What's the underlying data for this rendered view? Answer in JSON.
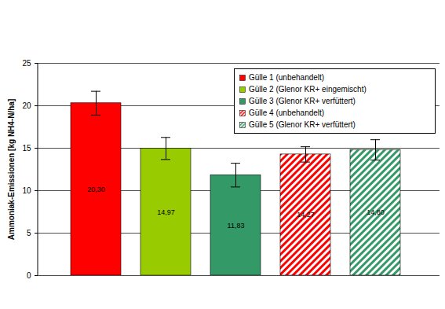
{
  "chart_data": {
    "type": "bar",
    "y_label": "Ammoniak-Emissionen [kg NH4-N/ha]",
    "categories": [
      null
    ],
    "series": [
      {
        "name": "Gülle 1 (unbehandelt)",
        "color": "#ff0000",
        "line_style": "solid",
        "values": [
          20.3
        ],
        "value_labels": [
          "20,30"
        ],
        "errors": [
          1.4
        ]
      },
      {
        "name": "Gülle 2 (Glenor KR+ eingemischt)",
        "color": "#99cc00",
        "line_style": "solid",
        "values": [
          14.97
        ],
        "value_labels": [
          "14,97"
        ],
        "errors": [
          1.3
        ]
      },
      {
        "name": "Gülle 3 (Glenor KR+ verfüttert)",
        "color": "#339966",
        "line_style": "solid",
        "values": [
          11.83
        ],
        "value_labels": [
          "11,83"
        ],
        "errors": [
          1.4
        ]
      },
      {
        "name": "Gülle 4 (unbehandelt)",
        "color": "#ff0000",
        "line_style": "hatched",
        "values": [
          14.27
        ],
        "value_labels": [
          "14,27"
        ],
        "errors": [
          0.9
        ]
      },
      {
        "name": "Gülle 5 (Glenor KR+ verfüttert)",
        "color": "#339966",
        "line_style": "hatched",
        "values": [
          14.8
        ],
        "value_labels": [
          "14,80"
        ],
        "errors": [
          1.2
        ]
      }
    ],
    "ylim": [
      0,
      25
    ],
    "yticks": [
      0,
      5,
      10,
      15,
      20,
      25
    ],
    "grid": true,
    "legend": "top-right",
    "data_labels": true,
    "tick_labels": "y"
  }
}
